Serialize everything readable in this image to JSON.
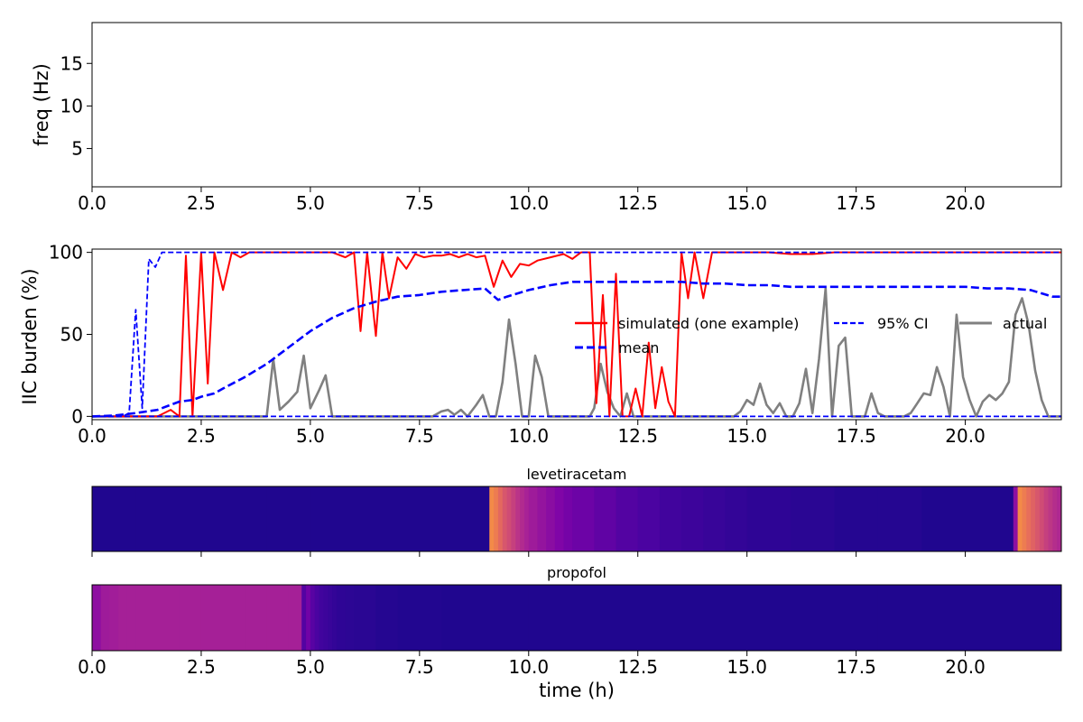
{
  "chart_data": [
    {
      "id": "freq",
      "type": "line",
      "title": "",
      "xlabel": "",
      "ylabel": "freq (Hz)",
      "xlim": [
        0,
        22.2
      ],
      "ylim": [
        0.5,
        19.8
      ],
      "xticks": [
        0,
        2.5,
        5,
        7.5,
        10,
        12.5,
        15,
        17.5,
        20
      ],
      "xtick_labels": [
        "0.0",
        "2.5",
        "5.0",
        "7.5",
        "10.0",
        "12.5",
        "15.0",
        "17.5",
        "20.0"
      ],
      "yticks": [
        5,
        10,
        15
      ],
      "ytick_labels": [
        "5",
        "10",
        "15"
      ],
      "series": []
    },
    {
      "id": "burden",
      "type": "line",
      "title": "",
      "xlabel": "",
      "ylabel": "IIC burden (%)",
      "xlim": [
        0,
        22.2
      ],
      "ylim": [
        -2,
        102
      ],
      "xticks": [
        0,
        2.5,
        5,
        7.5,
        10,
        12.5,
        15,
        17.5,
        20
      ],
      "xtick_labels": [
        "0.0",
        "2.5",
        "5.0",
        "7.5",
        "10.0",
        "12.5",
        "15.0",
        "17.5",
        "20.0"
      ],
      "yticks": [
        0,
        50,
        100
      ],
      "ytick_labels": [
        "0",
        "50",
        "100"
      ],
      "legend": "center-right, 3 columns",
      "series": [
        {
          "name": "simulated (one example)",
          "color": "#ff0000",
          "style": "solid",
          "x": [
            0,
            0.3,
            0.6,
            0.9,
            1.2,
            1.5,
            1.8,
            2.0,
            2.15,
            2.3,
            2.5,
            2.65,
            2.8,
            3.0,
            3.2,
            3.4,
            3.6,
            4.0,
            4.5,
            5.0,
            5.5,
            5.8,
            6.0,
            6.15,
            6.3,
            6.5,
            6.65,
            6.8,
            7.0,
            7.2,
            7.4,
            7.6,
            7.8,
            8.0,
            8.2,
            8.4,
            8.6,
            8.8,
            9.0,
            9.2,
            9.4,
            9.6,
            9.8,
            10.0,
            10.2,
            10.5,
            10.8,
            11.0,
            11.2,
            11.4,
            11.55,
            11.7,
            11.85,
            12.0,
            12.15,
            12.3,
            12.45,
            12.6,
            12.75,
            12.9,
            13.05,
            13.2,
            13.35,
            13.5,
            13.65,
            13.8,
            14.0,
            14.2,
            14.5,
            15.0,
            15.5,
            16.0,
            16.5,
            17.0,
            18.0,
            19.0,
            20.0,
            21.0,
            22.2
          ],
          "values": [
            0,
            0,
            0,
            0,
            0,
            0,
            4,
            0,
            98,
            0,
            100,
            20,
            100,
            77,
            100,
            97,
            100,
            100,
            100,
            100,
            100,
            97,
            100,
            52,
            100,
            49,
            100,
            72,
            97,
            90,
            99,
            97,
            98,
            98,
            99,
            97,
            99,
            97,
            98,
            79,
            95,
            85,
            93,
            92,
            95,
            97,
            99,
            96,
            100,
            100,
            8,
            74,
            0,
            87,
            0,
            0,
            17,
            0,
            45,
            5,
            30,
            9,
            0,
            100,
            72,
            100,
            72,
            100,
            100,
            100,
            100,
            99,
            99,
            100,
            100,
            100,
            100,
            100,
            100
          ]
        },
        {
          "name": "mean",
          "color": "#0000ff",
          "style": "dashed",
          "x": [
            0,
            0.5,
            1.0,
            1.5,
            1.8,
            2.0,
            2.3,
            2.5,
            2.8,
            3.0,
            3.5,
            4.0,
            4.5,
            5.0,
            5.5,
            6.0,
            6.5,
            7.0,
            7.5,
            8.0,
            8.5,
            9.0,
            9.3,
            9.5,
            10.0,
            10.5,
            11.0,
            11.5,
            12.0,
            12.5,
            13.0,
            13.5,
            14.0,
            14.5,
            15.0,
            15.5,
            16.0,
            16.5,
            17.0,
            17.5,
            18.0,
            18.5,
            19.0,
            19.5,
            20.0,
            20.5,
            21.0,
            21.5,
            22.0,
            22.2
          ],
          "values": [
            0,
            0.5,
            2,
            4,
            7,
            9,
            10,
            12,
            14,
            17,
            24,
            32,
            42,
            52,
            60,
            66,
            70,
            73,
            74,
            76,
            77,
            78,
            71,
            73,
            77,
            80,
            82,
            82,
            82,
            82,
            82,
            82,
            81,
            81,
            80,
            80,
            79,
            79,
            79,
            79,
            79,
            79,
            79,
            79,
            79,
            78,
            78,
            77,
            73,
            73
          ]
        },
        {
          "name": "95% CI",
          "color": "#0000ff",
          "style": "dashed-thin",
          "x": [
            0,
            0.7,
            0.85,
            1.0,
            1.15,
            1.3,
            1.45,
            1.6,
            1.7,
            22.2
          ],
          "values": [
            0,
            0,
            2,
            65,
            5,
            96,
            91,
            100,
            100,
            100
          ]
        },
        {
          "name": "",
          "color": "#0000ff",
          "style": "dashed-thin",
          "x": [
            0,
            22.2
          ],
          "values": [
            0,
            0
          ]
        },
        {
          "name": "actual",
          "color": "#808080",
          "style": "solid-thick",
          "x": [
            0,
            4.0,
            4.15,
            4.3,
            4.5,
            4.7,
            4.85,
            5.0,
            5.2,
            5.35,
            5.5,
            5.7,
            7.8,
            8.0,
            8.15,
            8.3,
            8.45,
            8.6,
            8.8,
            8.95,
            9.1,
            9.25,
            9.4,
            9.55,
            9.7,
            9.85,
            10.0,
            10.15,
            10.3,
            10.45,
            10.6,
            11.4,
            11.5,
            11.65,
            11.8,
            11.95,
            12.1,
            12.25,
            12.4,
            12.55,
            12.7,
            14.7,
            14.85,
            15.0,
            15.15,
            15.3,
            15.45,
            15.6,
            15.75,
            15.9,
            16.05,
            16.2,
            16.35,
            16.5,
            16.65,
            16.8,
            16.95,
            17.1,
            17.25,
            17.4,
            17.55,
            17.7,
            17.85,
            18.0,
            18.15,
            18.3,
            18.45,
            18.6,
            18.75,
            18.9,
            19.05,
            19.2,
            19.35,
            19.5,
            19.65,
            19.8,
            19.95,
            20.1,
            20.25,
            20.4,
            20.55,
            20.7,
            20.85,
            21.0,
            21.15,
            21.3,
            21.45,
            21.6,
            21.75,
            21.9,
            22.05,
            22.2
          ],
          "values": [
            0,
            0,
            35,
            4,
            9,
            15,
            37,
            5,
            16,
            25,
            0,
            0,
            0,
            3,
            4,
            1,
            4,
            0,
            7,
            13,
            0,
            0,
            21,
            59,
            32,
            0,
            0,
            37,
            24,
            0,
            0,
            0,
            5,
            32,
            15,
            5,
            0,
            14,
            0,
            0,
            0,
            0,
            3,
            10,
            7,
            20,
            7,
            2,
            8,
            0,
            0,
            8,
            29,
            2,
            35,
            78,
            0,
            43,
            48,
            0,
            0,
            0,
            14,
            2,
            0,
            0,
            0,
            0,
            2,
            8,
            14,
            13,
            30,
            18,
            0,
            62,
            24,
            10,
            0,
            9,
            13,
            10,
            14,
            21,
            62,
            72,
            56,
            28,
            10,
            0,
            0,
            0
          ]
        }
      ]
    },
    {
      "id": "levetiracetam",
      "type": "heatmap",
      "title": "levetiracetam",
      "xlim": [
        0,
        22.2
      ],
      "colormap": "plasma",
      "x": [
        0,
        1,
        2,
        3,
        4,
        5,
        6,
        7,
        8,
        9.0,
        9.1,
        9.2,
        9.3,
        9.4,
        9.5,
        9.6,
        9.7,
        9.8,
        9.9,
        10.0,
        10.2,
        10.4,
        10.6,
        10.8,
        11.0,
        11.5,
        12.0,
        12.5,
        13.0,
        13.5,
        14.0,
        14.5,
        15.0,
        16.0,
        17.0,
        18.0,
        19.0,
        20.0,
        21.0,
        21.1,
        21.2,
        21.3,
        21.4,
        21.5,
        21.6,
        21.7,
        21.8,
        21.9,
        22.0,
        22.1
      ],
      "values": [
        0.04,
        0.04,
        0.04,
        0.04,
        0.04,
        0.04,
        0.04,
        0.04,
        0.04,
        0.04,
        0.72,
        0.68,
        0.62,
        0.56,
        0.52,
        0.48,
        0.44,
        0.41,
        0.38,
        0.35,
        0.32,
        0.29,
        0.26,
        0.23,
        0.21,
        0.18,
        0.15,
        0.13,
        0.11,
        0.1,
        0.09,
        0.08,
        0.07,
        0.06,
        0.05,
        0.05,
        0.04,
        0.04,
        0.04,
        0.3,
        0.72,
        0.68,
        0.64,
        0.6,
        0.56,
        0.52,
        0.48,
        0.45,
        0.42,
        0.4
      ]
    },
    {
      "id": "propofol",
      "type": "heatmap",
      "title": "propofol",
      "xlim": [
        0,
        22.2
      ],
      "xlabel": "time (h)",
      "colormap": "plasma",
      "xticks": [
        0,
        2.5,
        5,
        7.5,
        10,
        12.5,
        15,
        17.5,
        20
      ],
      "xtick_labels": [
        "0.0",
        "2.5",
        "5.0",
        "7.5",
        "10.0",
        "12.5",
        "15.0",
        "17.5",
        "20.0"
      ],
      "x": [
        0,
        0.2,
        0.4,
        0.6,
        0.8,
        1.0,
        1.5,
        2.0,
        2.5,
        3.0,
        3.5,
        4.0,
        4.5,
        4.8,
        4.9,
        5.0,
        5.1,
        5.2,
        5.3,
        5.4,
        5.5,
        5.6,
        5.8,
        6.0,
        6.5,
        7.0,
        8.0,
        9.0,
        10.0,
        12.0,
        14.0,
        16.0,
        18.0,
        20.0,
        22.0
      ],
      "values": [
        0.3,
        0.35,
        0.36,
        0.37,
        0.37,
        0.37,
        0.37,
        0.37,
        0.37,
        0.37,
        0.37,
        0.37,
        0.37,
        0.15,
        0.22,
        0.16,
        0.13,
        0.11,
        0.1,
        0.09,
        0.08,
        0.07,
        0.065,
        0.06,
        0.05,
        0.045,
        0.04,
        0.04,
        0.04,
        0.04,
        0.04,
        0.04,
        0.04,
        0.04,
        0.04
      ]
    }
  ]
}
